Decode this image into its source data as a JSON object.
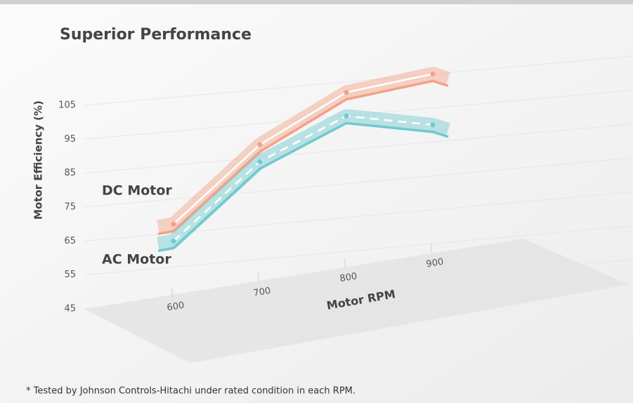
{
  "chart_data": {
    "type": "line",
    "title": "Superior Performance",
    "y_label": "Motor Efficiency (%)",
    "x_label": "Motor RPM",
    "footnote": "* Tested by Johnson Controls-Hitachi under rated condition in each RPM.",
    "x": [
      600,
      700,
      800,
      900
    ],
    "xlim": [
      600,
      900
    ],
    "ylim": [
      45,
      105
    ],
    "yticks": [
      45,
      55,
      65,
      75,
      85,
      95,
      105
    ],
    "series": [
      {
        "name": "DC Motor",
        "color": "#f3a186",
        "values": [
          70,
          89,
          100,
          101
        ]
      },
      {
        "name": "AC Motor",
        "color": "#6fc9cf",
        "values": [
          65,
          84,
          93,
          86
        ]
      }
    ]
  }
}
